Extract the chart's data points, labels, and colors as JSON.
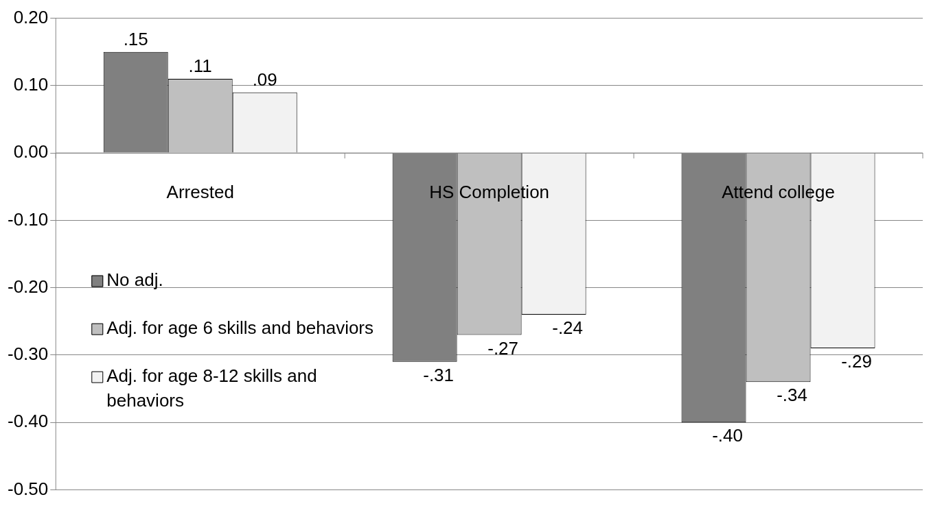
{
  "chart_data": {
    "type": "bar",
    "categories": [
      "Arrested",
      "HS Completion",
      "Attend college"
    ],
    "series": [
      {
        "name": "No adj.",
        "color": "#808080",
        "values": [
          0.15,
          -0.31,
          -0.4
        ],
        "value_labels": [
          ".15",
          "-.31",
          "-.40"
        ]
      },
      {
        "name": "Adj. for age 6 skills and behaviors",
        "color": "#bfbfbf",
        "values": [
          0.11,
          -0.27,
          -0.34
        ],
        "value_labels": [
          ".11",
          "-.27",
          "-.34"
        ]
      },
      {
        "name": "Adj. for age 8-12 skills and behaviors",
        "color": "#f2f2f2",
        "values": [
          0.09,
          -0.24,
          -0.29
        ],
        "value_labels": [
          ".09",
          "-.24",
          "-.29"
        ]
      }
    ],
    "ylim": [
      -0.5,
      0.2
    ],
    "yticks": [
      {
        "value": -0.5,
        "label": "-0.50"
      },
      {
        "value": -0.4,
        "label": "-0.40"
      },
      {
        "value": -0.3,
        "label": "-0.30"
      },
      {
        "value": -0.2,
        "label": "-0.20"
      },
      {
        "value": -0.1,
        "label": "-0.10"
      },
      {
        "value": 0,
        "label": "0.00"
      },
      {
        "value": 0.1,
        "label": "0.10"
      },
      {
        "value": 0.2,
        "label": "0.20"
      }
    ],
    "grid": "y",
    "legend": "left"
  }
}
